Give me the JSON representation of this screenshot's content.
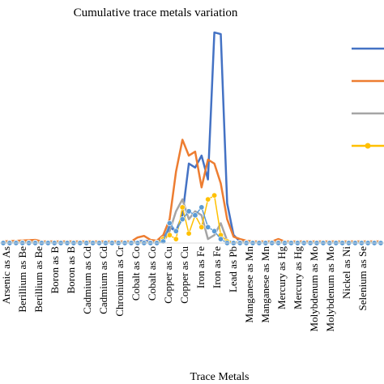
{
  "chart_data": {
    "type": "line",
    "title": "Cumulative trace metals variation",
    "xlabel": "Trace Metals",
    "ylabel": "",
    "categories": [
      "Arsenic as As",
      "Arsenic as As",
      "Berillium as Be",
      "Berillium as Be",
      "Boron as B",
      "Boron as B",
      "Cadmium as Cd",
      "Cadmium as Cd",
      "Chromium as Cr",
      "Chromium as Cr",
      "Cobalt as Co",
      "Cobalt as Co",
      "Copper as Cu",
      "Copper as Cu",
      "Iron as Fe",
      "Iron as Fe",
      "Lead as Pb",
      "Lead as Pb",
      "Manganese as Mn",
      "Manganese as Mn",
      "Mercury as Hg",
      "Mercury as Hg",
      "Molybdenum as Mo",
      "Molybdenum as Mo",
      "Nickel as Ni",
      "Nickel as Ni",
      "Selenium as Se",
      "Selenium as Se"
    ],
    "tick_labels_shown": [
      "Arsenic as As",
      "Berillium as Be",
      "Berillium as Be",
      "Boron as B",
      "Boron as B",
      "Cadmium as Cd",
      "Cadmium as Cd",
      "Chromium as Cr",
      "Cobalt as Co",
      "Cobalt as Co",
      "Copper as Cu",
      "Copper as Cu",
      "Iron as Fe",
      "Iron as Fe",
      "Lead as Pb",
      "Manganese as Mn",
      "Manganese as Mn",
      "Mercury as Hg",
      "Mercury as Hg",
      "Molybdenum as Mo",
      "Molybdenum as Mo",
      "Nickel as Ni",
      "Selenium as Se"
    ],
    "ylim": [
      0,
      26
    ],
    "x_count": 60,
    "grid": false,
    "legend_position": "right",
    "series": [
      {
        "color": "#4472C4",
        "marker": "none",
        "points": [
          [
            0,
            0.1
          ],
          [
            20,
            0.1
          ],
          [
            22,
            0.3
          ],
          [
            24,
            0.1
          ],
          [
            25,
            0.5
          ],
          [
            26,
            2.0
          ],
          [
            27,
            1.5
          ],
          [
            28,
            3.5
          ],
          [
            29,
            10.0
          ],
          [
            30,
            9.5
          ],
          [
            31,
            11.0
          ],
          [
            32,
            8.0
          ],
          [
            33,
            26.5
          ],
          [
            34,
            26.3
          ],
          [
            35,
            5.0
          ],
          [
            36,
            1.0
          ],
          [
            37,
            0.2
          ],
          [
            38,
            0.1
          ],
          [
            59,
            0.1
          ]
        ]
      },
      {
        "color": "#ED7D31",
        "marker": "none",
        "points": [
          [
            0,
            0.2
          ],
          [
            5,
            0.4
          ],
          [
            6,
            0.2
          ],
          [
            20,
            0.2
          ],
          [
            21,
            0.7
          ],
          [
            22,
            0.9
          ],
          [
            23,
            0.4
          ],
          [
            24,
            0.3
          ],
          [
            25,
            1.0
          ],
          [
            26,
            3.0
          ],
          [
            27,
            9.0
          ],
          [
            28,
            13.0
          ],
          [
            29,
            11.0
          ],
          [
            30,
            11.5
          ],
          [
            31,
            7.0
          ],
          [
            32,
            10.5
          ],
          [
            33,
            10.0
          ],
          [
            34,
            7.5
          ],
          [
            35,
            3.0
          ],
          [
            36,
            0.8
          ],
          [
            37,
            0.5
          ],
          [
            38,
            0.3
          ],
          [
            39,
            0.2
          ],
          [
            42,
            0.2
          ],
          [
            43,
            0.5
          ],
          [
            44,
            0.2
          ],
          [
            59,
            0.2
          ]
        ]
      },
      {
        "color": "#A5A5A5",
        "marker": "none",
        "points": [
          [
            0,
            0.1
          ],
          [
            25,
            0.1
          ],
          [
            26,
            1.5
          ],
          [
            27,
            4.0
          ],
          [
            28,
            5.5
          ],
          [
            29,
            3.0
          ],
          [
            30,
            4.0
          ],
          [
            31,
            3.5
          ],
          [
            32,
            0.5
          ],
          [
            33,
            1.0
          ],
          [
            34,
            2.5
          ],
          [
            35,
            0.3
          ],
          [
            36,
            0.1
          ],
          [
            59,
            0.1
          ]
        ]
      },
      {
        "color": "#FFC000",
        "marker": "circle",
        "points": [
          [
            0,
            0.05
          ],
          [
            1,
            0.05
          ],
          [
            2,
            0.05
          ],
          [
            3,
            0.05
          ],
          [
            4,
            0.05
          ],
          [
            5,
            0.05
          ],
          [
            6,
            0.05
          ],
          [
            7,
            0.05
          ],
          [
            8,
            0.05
          ],
          [
            9,
            0.05
          ],
          [
            10,
            0.05
          ],
          [
            11,
            0.05
          ],
          [
            12,
            0.05
          ],
          [
            13,
            0.05
          ],
          [
            14,
            0.05
          ],
          [
            15,
            0.05
          ],
          [
            16,
            0.05
          ],
          [
            17,
            0.05
          ],
          [
            18,
            0.05
          ],
          [
            19,
            0.05
          ],
          [
            20,
            0.05
          ],
          [
            21,
            0.05
          ],
          [
            22,
            0.05
          ],
          [
            23,
            0.05
          ],
          [
            24,
            0.05
          ],
          [
            25,
            0.5
          ],
          [
            26,
            1.0
          ],
          [
            27,
            0.5
          ],
          [
            28,
            4.5
          ],
          [
            29,
            1.2
          ],
          [
            30,
            3.5
          ],
          [
            31,
            2.0
          ],
          [
            32,
            5.5
          ],
          [
            33,
            6.0
          ],
          [
            34,
            1.0
          ],
          [
            35,
            0.2
          ],
          [
            36,
            0.05
          ],
          [
            37,
            0.05
          ],
          [
            38,
            0.05
          ],
          [
            39,
            0.05
          ],
          [
            40,
            0.05
          ],
          [
            41,
            0.05
          ],
          [
            42,
            0.05
          ],
          [
            43,
            0.05
          ],
          [
            44,
            0.05
          ],
          [
            45,
            0.05
          ],
          [
            46,
            0.05
          ],
          [
            47,
            0.05
          ],
          [
            48,
            0.05
          ],
          [
            49,
            0.05
          ],
          [
            50,
            0.05
          ],
          [
            51,
            0.05
          ],
          [
            52,
            0.05
          ],
          [
            53,
            0.05
          ],
          [
            54,
            0.05
          ],
          [
            55,
            0.05
          ],
          [
            56,
            0.05
          ],
          [
            57,
            0.05
          ],
          [
            58,
            0.05
          ],
          [
            59,
            0.05
          ]
        ]
      },
      {
        "color": "#5B9BD5",
        "marker": "circle",
        "points": [
          [
            0,
            0.0
          ],
          [
            1,
            0.0
          ],
          [
            2,
            0.0
          ],
          [
            3,
            0.0
          ],
          [
            4,
            0.0
          ],
          [
            5,
            0.0
          ],
          [
            6,
            0.0
          ],
          [
            7,
            0.0
          ],
          [
            8,
            0.0
          ],
          [
            9,
            0.0
          ],
          [
            10,
            0.0
          ],
          [
            11,
            0.0
          ],
          [
            12,
            0.0
          ],
          [
            13,
            0.0
          ],
          [
            14,
            0.0
          ],
          [
            15,
            0.0
          ],
          [
            16,
            0.0
          ],
          [
            17,
            0.0
          ],
          [
            18,
            0.0
          ],
          [
            19,
            0.0
          ],
          [
            20,
            0.0
          ],
          [
            21,
            0.0
          ],
          [
            22,
            0.0
          ],
          [
            23,
            0.0
          ],
          [
            24,
            0.0
          ],
          [
            25,
            0.2
          ],
          [
            26,
            2.5
          ],
          [
            27,
            1.5
          ],
          [
            28,
            3.0
          ],
          [
            29,
            4.0
          ],
          [
            30,
            3.5
          ],
          [
            31,
            4.5
          ],
          [
            32,
            2.0
          ],
          [
            33,
            1.5
          ],
          [
            34,
            0.5
          ],
          [
            35,
            0.0
          ],
          [
            36,
            0.0
          ],
          [
            37,
            0.0
          ],
          [
            38,
            0.0
          ],
          [
            39,
            0.0
          ],
          [
            40,
            0.0
          ],
          [
            41,
            0.0
          ],
          [
            42,
            0.0
          ],
          [
            43,
            0.0
          ],
          [
            44,
            0.0
          ],
          [
            45,
            0.0
          ],
          [
            46,
            0.0
          ],
          [
            47,
            0.0
          ],
          [
            48,
            0.0
          ],
          [
            49,
            0.0
          ],
          [
            50,
            0.0
          ],
          [
            51,
            0.0
          ],
          [
            52,
            0.0
          ],
          [
            53,
            0.0
          ],
          [
            54,
            0.0
          ],
          [
            55,
            0.0
          ],
          [
            56,
            0.0
          ],
          [
            57,
            0.0
          ],
          [
            58,
            0.0
          ],
          [
            59,
            0.0
          ]
        ]
      }
    ],
    "legend_entries": [
      {
        "color": "#4472C4",
        "marker": "none",
        "label": ""
      },
      {
        "color": "#ED7D31",
        "marker": "none",
        "label": ""
      },
      {
        "color": "#A5A5A5",
        "marker": "none",
        "label": ""
      },
      {
        "color": "#FFC000",
        "marker": "circle",
        "label": ""
      }
    ]
  }
}
